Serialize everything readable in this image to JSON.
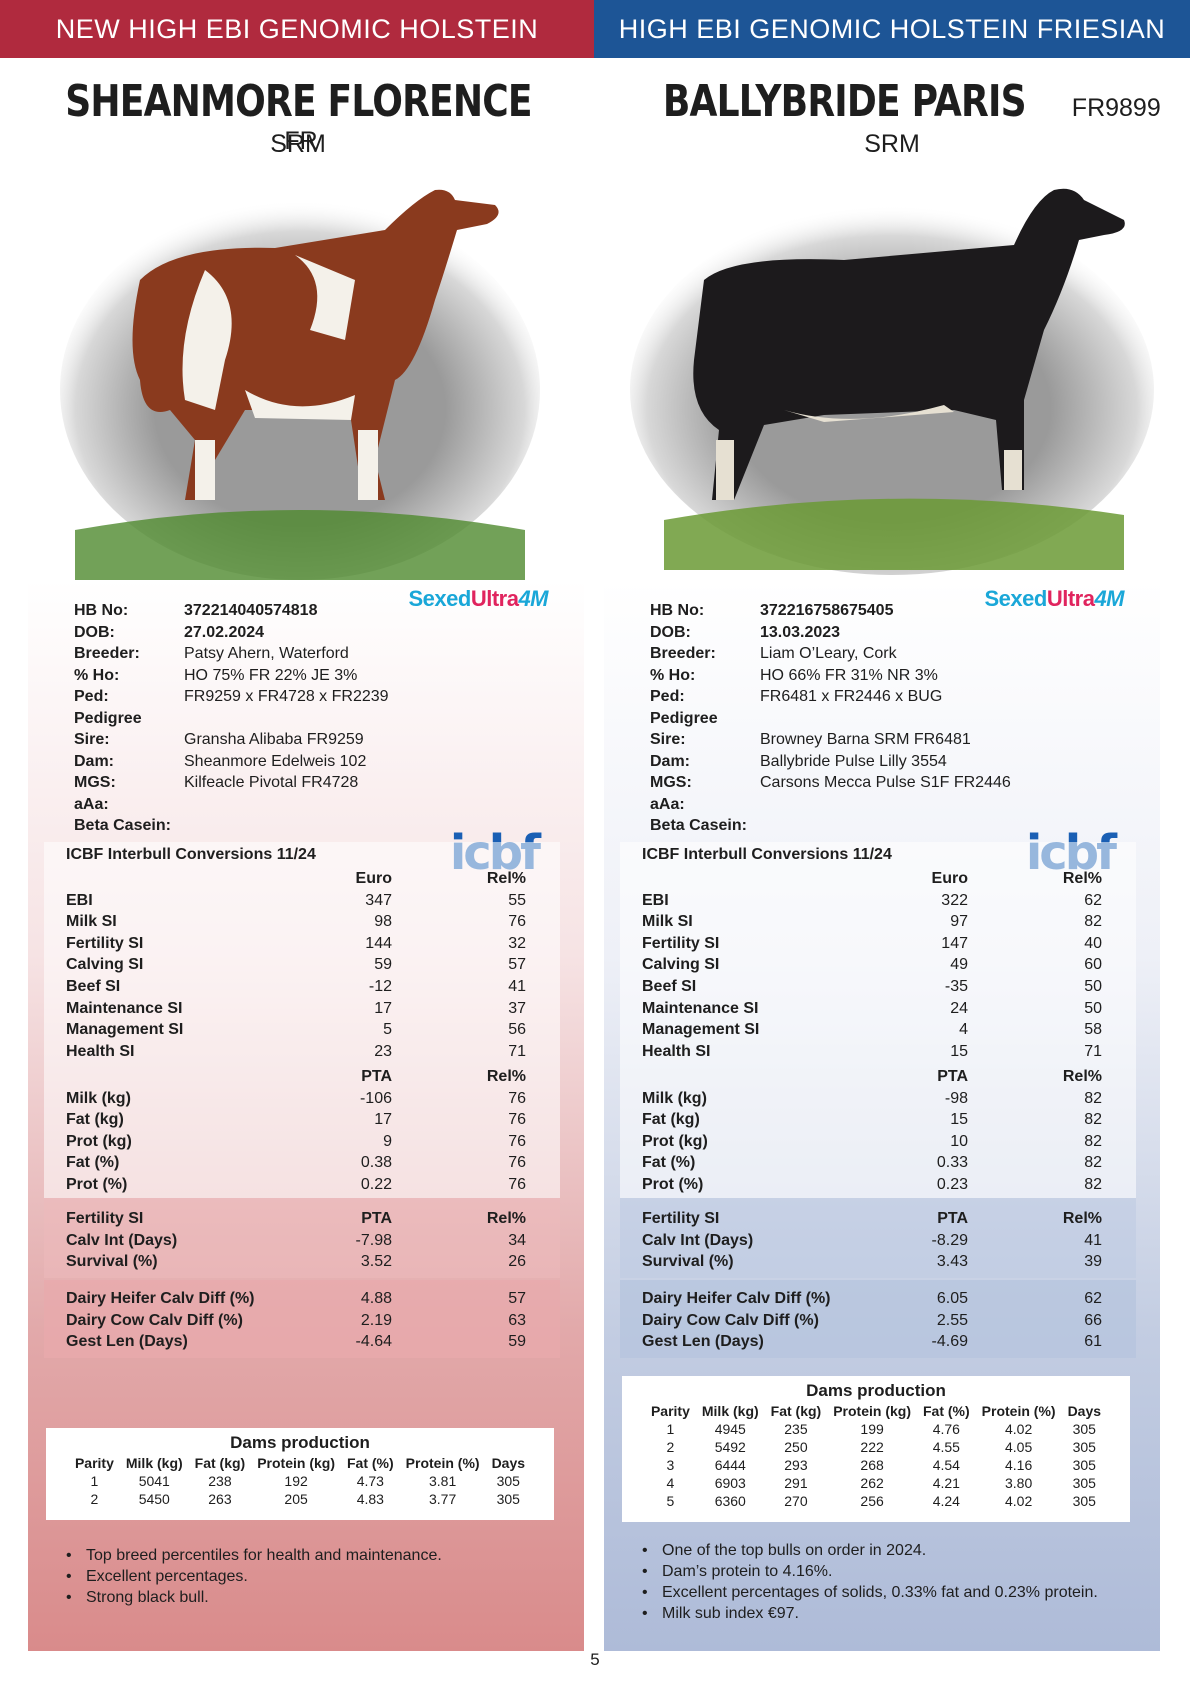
{
  "banners": {
    "left": "NEW HIGH EBI GENOMIC HOLSTEIN FRIESIAN",
    "right": "HIGH EBI GENOMIC HOLSTEIN FRIESIAN"
  },
  "page_number": "5",
  "logos": {
    "sexed_a": "Sexed",
    "sexed_b": "Ultra",
    "sexed_c": "4M",
    "icbf": "icbf"
  },
  "bulls": [
    {
      "name": "SHEANMORE FLORENCE",
      "code": "FR",
      "type": "SRM",
      "info": {
        "hb_label": "HB No:",
        "hb": "372214040574818",
        "dob_label": "DOB:",
        "dob": "27.02.2024",
        "breeder_label": "Breeder:",
        "breeder": "Patsy Ahern, Waterford",
        "ho_label": "% Ho:",
        "ho": "HO 75% FR 22% JE 3%",
        "ped_label": "Ped:",
        "ped": "FR9259 x FR4728 x FR2239",
        "pedigree_label": "Pedigree",
        "sire_label": "Sire:",
        "sire": "Gransha Alibaba FR9259",
        "dam_label": "Dam:",
        "dam": "Sheanmore Edelweis 102",
        "mgs_label": "MGS:",
        "mgs": "Kilfeacle Pivotal FR4728",
        "aaa_label": "aAa:",
        "beta_label": "Beta Casein:"
      },
      "conv_title": "ICBF Interbull Conversions 11/24",
      "conv_head": {
        "c2": "Euro",
        "c3": "Rel%"
      },
      "conv": [
        {
          "label": "EBI",
          "v": "347",
          "r": "55"
        },
        {
          "label": "Milk SI",
          "v": "98",
          "r": "76"
        },
        {
          "label": "Fertility SI",
          "v": "144",
          "r": "32"
        },
        {
          "label": "Calving SI",
          "v": "59",
          "r": "57"
        },
        {
          "label": "Beef SI",
          "v": "-12",
          "r": "41"
        },
        {
          "label": "Maintenance SI",
          "v": "17",
          "r": "37"
        },
        {
          "label": "Management SI",
          "v": "5",
          "r": "56"
        },
        {
          "label": "Health SI",
          "v": "23",
          "r": "71"
        }
      ],
      "prod_head": {
        "c2": "PTA",
        "c3": "Rel%"
      },
      "prod": [
        {
          "label": "Milk (kg)",
          "v": "-106",
          "r": "76"
        },
        {
          "label": "Fat (kg)",
          "v": "17",
          "r": "76"
        },
        {
          "label": "Prot (kg)",
          "v": "9",
          "r": "76"
        },
        {
          "label": "Fat (%)",
          "v": "0.38",
          "r": "76"
        },
        {
          "label": "Prot (%)",
          "v": "0.22",
          "r": "76"
        }
      ],
      "fert_head": {
        "c1": "Fertility SI",
        "c2": "PTA",
        "c3": "Rel%"
      },
      "fert": [
        {
          "label": "Calv Int (Days)",
          "v": "-7.98",
          "r": "34"
        },
        {
          "label": "Survival (%)",
          "v": "3.52",
          "r": "26"
        }
      ],
      "calv": [
        {
          "label": "Dairy Heifer Calv Diff (%)",
          "v": "4.88",
          "r": "57"
        },
        {
          "label": "Dairy Cow Calv Diff (%)",
          "v": "2.19",
          "r": "63"
        },
        {
          "label": "Gest Len (Days)",
          "v": "-4.64",
          "r": "59"
        }
      ],
      "dams_title": "Dams production",
      "dams_cols": [
        "Parity",
        "Milk (kg)",
        "Fat (kg)",
        "Protein (kg)",
        "Fat (%)",
        "Protein (%)",
        "Days"
      ],
      "dams_rows": [
        [
          "1",
          "5041",
          "238",
          "192",
          "4.73",
          "3.81",
          "305"
        ],
        [
          "2",
          "5450",
          "263",
          "205",
          "4.83",
          "3.77",
          "305"
        ]
      ],
      "bullets": [
        "Top breed percentiles for health and maintenance.",
        "Excellent percentages.",
        "Strong black bull."
      ]
    },
    {
      "name": "BALLYBRIDE PARIS",
      "code": "FR9899",
      "type": "SRM",
      "info": {
        "hb_label": "HB No:",
        "hb": "372216758675405",
        "dob_label": "DOB:",
        "dob": "13.03.2023",
        "breeder_label": "Breeder:",
        "breeder": "Liam O’Leary, Cork",
        "ho_label": "% Ho:",
        "ho": "HO 66% FR 31% NR 3%",
        "ped_label": "Ped:",
        "ped": "FR6481 x FR2446 x BUG",
        "pedigree_label": "Pedigree",
        "sire_label": "Sire:",
        "sire": "Browney Barna SRM FR6481",
        "dam_label": "Dam:",
        "dam": "Ballybride Pulse Lilly 3554",
        "mgs_label": "MGS:",
        "mgs": "Carsons Mecca Pulse S1F FR2446",
        "aaa_label": "aAa:",
        "beta_label": "Beta Casein:"
      },
      "conv_title": "ICBF Interbull Conversions 11/24",
      "conv_head": {
        "c2": "Euro",
        "c3": "Rel%"
      },
      "conv": [
        {
          "label": "EBI",
          "v": "322",
          "r": "62"
        },
        {
          "label": "Milk SI",
          "v": "97",
          "r": "82"
        },
        {
          "label": "Fertility SI",
          "v": "147",
          "r": "40"
        },
        {
          "label": "Calving SI",
          "v": "49",
          "r": "60"
        },
        {
          "label": "Beef SI",
          "v": "-35",
          "r": "50"
        },
        {
          "label": "Maintenance SI",
          "v": "24",
          "r": "50"
        },
        {
          "label": "Management SI",
          "v": "4",
          "r": "58"
        },
        {
          "label": "Health SI",
          "v": "15",
          "r": "71"
        }
      ],
      "prod_head": {
        "c2": "PTA",
        "c3": "Rel%"
      },
      "prod": [
        {
          "label": "Milk (kg)",
          "v": "-98",
          "r": "82"
        },
        {
          "label": "Fat (kg)",
          "v": "15",
          "r": "82"
        },
        {
          "label": "Prot (kg)",
          "v": "10",
          "r": "82"
        },
        {
          "label": "Fat (%)",
          "v": "0.33",
          "r": "82"
        },
        {
          "label": "Prot (%)",
          "v": "0.23",
          "r": "82"
        }
      ],
      "fert_head": {
        "c1": "Fertility SI",
        "c2": "PTA",
        "c3": "Rel%"
      },
      "fert": [
        {
          "label": "Calv Int (Days)",
          "v": "-8.29",
          "r": "41"
        },
        {
          "label": "Survival (%)",
          "v": "3.43",
          "r": "39"
        }
      ],
      "calv": [
        {
          "label": "Dairy Heifer Calv Diff (%)",
          "v": "6.05",
          "r": "62"
        },
        {
          "label": "Dairy Cow Calv Diff (%)",
          "v": "2.55",
          "r": "66"
        },
        {
          "label": "Gest Len (Days)",
          "v": "-4.69",
          "r": "61"
        }
      ],
      "dams_title": "Dams production",
      "dams_cols": [
        "Parity",
        "Milk (kg)",
        "Fat (kg)",
        "Protein (kg)",
        "Fat (%)",
        "Protein (%)",
        "Days"
      ],
      "dams_rows": [
        [
          "1",
          "4945",
          "235",
          "199",
          "4.76",
          "4.02",
          "305"
        ],
        [
          "2",
          "5492",
          "250",
          "222",
          "4.55",
          "4.05",
          "305"
        ],
        [
          "3",
          "6444",
          "293",
          "268",
          "4.54",
          "4.16",
          "305"
        ],
        [
          "4",
          "6903",
          "291",
          "262",
          "4.21",
          "3.80",
          "305"
        ],
        [
          "5",
          "6360",
          "270",
          "256",
          "4.24",
          "4.02",
          "305"
        ]
      ],
      "bullets": [
        "One of the top bulls on order in 2024.",
        "Dam’s protein to 4.16%.",
        "Excellent percentages of solids, 0.33% fat and 0.23% protein.",
        "Milk sub index €97."
      ]
    }
  ]
}
